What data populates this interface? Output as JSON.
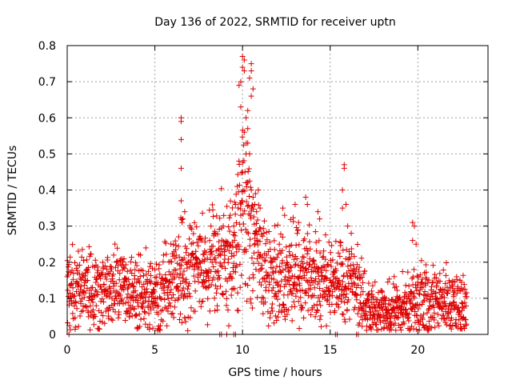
{
  "chart_data": {
    "type": "scatter",
    "title": "Day 136 of 2022, SRMTID for receiver uptn",
    "xlabel": "GPS time / hours",
    "ylabel": "SRMTID / TECUs",
    "xlim": [
      0,
      24
    ],
    "ylim": [
      0,
      0.8
    ],
    "xticks": [
      "0",
      "5",
      "10",
      "15",
      "20"
    ],
    "yticks": [
      "0",
      "0.1",
      "0.2",
      "0.3",
      "0.4",
      "0.5",
      "0.6",
      "0.7",
      "0.8"
    ],
    "grid": true,
    "color": "#dd0000",
    "marker": "plus",
    "series": [
      {
        "name": "SRMTID",
        "profile": [
          [
            0.0,
            0.13
          ],
          [
            0.5,
            0.13
          ],
          [
            1.0,
            0.11
          ],
          [
            2.0,
            0.12
          ],
          [
            3.0,
            0.13
          ],
          [
            4.0,
            0.12
          ],
          [
            5.0,
            0.11
          ],
          [
            5.5,
            0.13
          ],
          [
            6.0,
            0.15
          ],
          [
            6.5,
            0.17
          ],
          [
            7.0,
            0.18
          ],
          [
            7.5,
            0.19
          ],
          [
            8.0,
            0.2
          ],
          [
            8.5,
            0.2
          ],
          [
            9.0,
            0.22
          ],
          [
            9.5,
            0.24
          ],
          [
            10.0,
            0.33
          ],
          [
            10.5,
            0.3
          ],
          [
            11.0,
            0.2
          ],
          [
            12.0,
            0.15
          ],
          [
            13.0,
            0.17
          ],
          [
            14.0,
            0.15
          ],
          [
            15.0,
            0.14
          ],
          [
            16.0,
            0.14
          ],
          [
            16.5,
            0.13
          ],
          [
            17.0,
            0.08
          ],
          [
            18.0,
            0.06
          ],
          [
            19.0,
            0.07
          ],
          [
            20.0,
            0.1
          ],
          [
            21.0,
            0.09
          ],
          [
            22.0,
            0.09
          ],
          [
            22.8,
            0.07
          ]
        ],
        "spread": 0.035,
        "outliers": [
          [
            6.5,
            0.6
          ],
          [
            6.5,
            0.59
          ],
          [
            6.5,
            0.54
          ],
          [
            6.5,
            0.46
          ],
          [
            6.5,
            0.37
          ],
          [
            6.7,
            0.34
          ],
          [
            6.6,
            0.32
          ],
          [
            9.8,
            0.69
          ],
          [
            9.9,
            0.7
          ],
          [
            10.0,
            0.74
          ],
          [
            10.0,
            0.77
          ],
          [
            10.1,
            0.76
          ],
          [
            10.1,
            0.73
          ],
          [
            9.9,
            0.63
          ],
          [
            10.2,
            0.6
          ],
          [
            10.3,
            0.57
          ],
          [
            10.3,
            0.53
          ],
          [
            10.4,
            0.5
          ],
          [
            9.8,
            0.48
          ],
          [
            10.0,
            0.45
          ],
          [
            10.2,
            0.42
          ],
          [
            10.5,
            0.4
          ],
          [
            10.6,
            0.38
          ],
          [
            10.7,
            0.36
          ],
          [
            10.8,
            0.34
          ],
          [
            10.5,
            0.75
          ],
          [
            10.5,
            0.73
          ],
          [
            10.4,
            0.71
          ],
          [
            10.6,
            0.68
          ],
          [
            10.5,
            0.66
          ],
          [
            10.3,
            0.62
          ],
          [
            10.1,
            0.56
          ],
          [
            9.7,
            0.41
          ],
          [
            9.6,
            0.36
          ],
          [
            10.9,
            0.4
          ],
          [
            11.0,
            0.35
          ],
          [
            10.2,
            0.5
          ],
          [
            15.8,
            0.47
          ],
          [
            15.8,
            0.46
          ],
          [
            15.7,
            0.4
          ],
          [
            15.9,
            0.36
          ],
          [
            15.7,
            0.35
          ],
          [
            16.0,
            0.3
          ],
          [
            16.2,
            0.28
          ],
          [
            12.3,
            0.35
          ],
          [
            12.4,
            0.33
          ],
          [
            13.0,
            0.36
          ],
          [
            13.6,
            0.38
          ],
          [
            13.7,
            0.36
          ],
          [
            13.2,
            0.31
          ],
          [
            14.3,
            0.34
          ],
          [
            14.4,
            0.32
          ],
          [
            8.2,
            0.3
          ],
          [
            8.4,
            0.28
          ],
          [
            9.3,
            0.33
          ],
          [
            9.5,
            0.3
          ],
          [
            19.7,
            0.31
          ],
          [
            19.8,
            0.3
          ],
          [
            19.7,
            0.26
          ],
          [
            19.9,
            0.25
          ]
        ],
        "zeros": [
          8.7,
          8.8,
          9.1,
          9.5,
          9.6,
          15.3,
          15.4,
          16.5,
          16.6,
          0.1
        ]
      }
    ]
  }
}
